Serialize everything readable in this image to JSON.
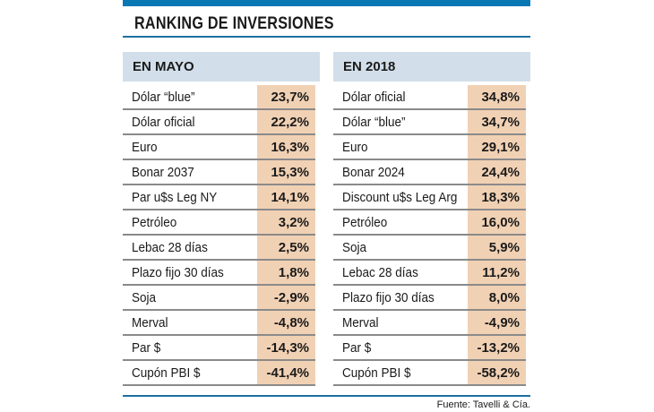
{
  "title": "RANKING DE INVERSIONES",
  "colors": {
    "bar": "#0a77b5",
    "header_bg": "#d2dfea",
    "value_bg": "#f1d1b4"
  },
  "left": {
    "header": "EN MAYO",
    "rows": [
      {
        "label": "Dólar “blue”",
        "value": "23,7%"
      },
      {
        "label": "Dólar oficial",
        "value": "22,2%"
      },
      {
        "label": "Euro",
        "value": "16,3%"
      },
      {
        "label": "Bonar 2037",
        "value": "15,3%"
      },
      {
        "label": "Par u$s Leg NY",
        "value": "14,1%"
      },
      {
        "label": "Petróleo",
        "value": "3,2%"
      },
      {
        "label": "Lebac 28 días",
        "value": "2,5%"
      },
      {
        "label": "Plazo fijo 30 días",
        "value": "1,8%"
      },
      {
        "label": "Soja",
        "value": "-2,9%"
      },
      {
        "label": "Merval",
        "value": "-4,8%"
      },
      {
        "label": "Par $",
        "value": "-14,3%"
      },
      {
        "label": "Cupón PBI $",
        "value": "-41,4%"
      }
    ]
  },
  "right": {
    "header": "EN 2018",
    "rows": [
      {
        "label": "Dólar oficial",
        "value": "34,8%"
      },
      {
        "label": "Dólar “blue”",
        "value": "34,7%"
      },
      {
        "label": "Euro",
        "value": "29,1%"
      },
      {
        "label": "Bonar 2024",
        "value": "24,4%"
      },
      {
        "label": "Discount u$s Leg Arg",
        "value": "18,3%"
      },
      {
        "label": "Petróleo",
        "value": "16,0%"
      },
      {
        "label": "Soja",
        "value": "5,9%"
      },
      {
        "label": "Lebac 28 días",
        "value": "11,2%"
      },
      {
        "label": "Plazo fijo 30 días",
        "value": "8,0%"
      },
      {
        "label": "Merval",
        "value": "-4,9%"
      },
      {
        "label": "Par $",
        "value": "-13,2%"
      },
      {
        "label": "Cupón PBI $",
        "value": "-58,2%"
      }
    ]
  },
  "source": "Fuente: Tavelli & Cía."
}
